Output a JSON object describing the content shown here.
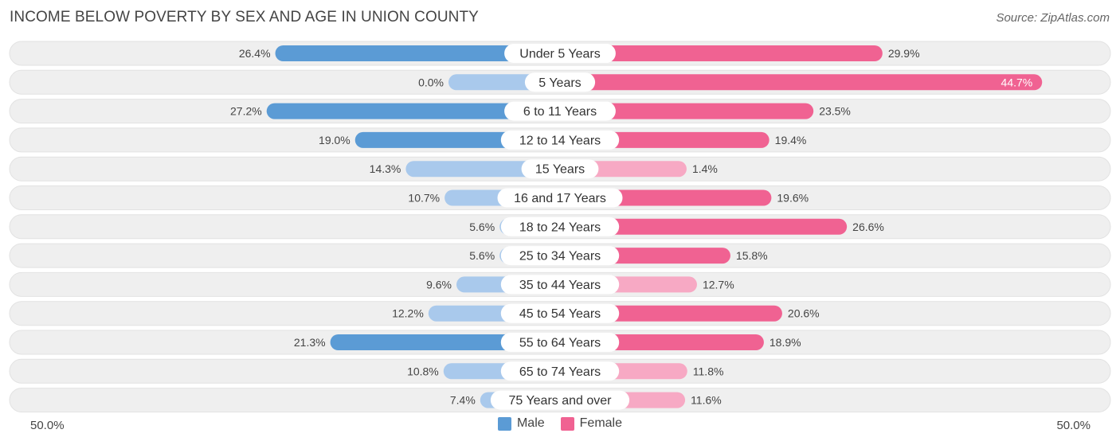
{
  "title": "INCOME BELOW POVERTY BY SEX AND AGE IN UNION COUNTY",
  "source": "Source: ZipAtlas.com",
  "axis": {
    "left_label": "50.0%",
    "right_label": "50.0%"
  },
  "legend": [
    {
      "label": "Male",
      "color": "#5b9bd5"
    },
    {
      "label": "Female",
      "color": "#f06292"
    }
  ],
  "colors": {
    "male_strong": "#5b9bd5",
    "male_light": "#a9c9ec",
    "female_strong": "#f06292",
    "female_light": "#f7a9c4",
    "row_bg": "#efefef"
  },
  "chart_data": {
    "type": "bar",
    "orientation": "horizontal-diverging",
    "xlim": [
      -50,
      50
    ],
    "categories": [
      "Under 5 Years",
      "5 Years",
      "6 to 11 Years",
      "12 to 14 Years",
      "15 Years",
      "16 and 17 Years",
      "18 to 24 Years",
      "25 to 34 Years",
      "35 to 44 Years",
      "45 to 54 Years",
      "55 to 64 Years",
      "65 to 74 Years",
      "75 Years and over"
    ],
    "series": [
      {
        "name": "Male",
        "values": [
          26.4,
          0.0,
          27.2,
          19.0,
          14.3,
          10.7,
          5.6,
          5.6,
          9.6,
          12.2,
          21.3,
          10.8,
          7.4
        ],
        "labels": [
          "26.4%",
          "0.0%",
          "27.2%",
          "19.0%",
          "14.3%",
          "10.7%",
          "5.6%",
          "5.6%",
          "9.6%",
          "12.2%",
          "21.3%",
          "10.8%",
          "7.4%"
        ]
      },
      {
        "name": "Female",
        "values": [
          29.9,
          44.7,
          23.5,
          19.4,
          1.4,
          19.6,
          26.6,
          15.8,
          12.7,
          20.6,
          18.9,
          11.8,
          11.6
        ],
        "labels": [
          "29.9%",
          "44.7%",
          "23.5%",
          "19.4%",
          "1.4%",
          "19.6%",
          "26.6%",
          "15.8%",
          "12.7%",
          "20.6%",
          "18.9%",
          "11.8%",
          "11.6%"
        ]
      }
    ]
  }
}
